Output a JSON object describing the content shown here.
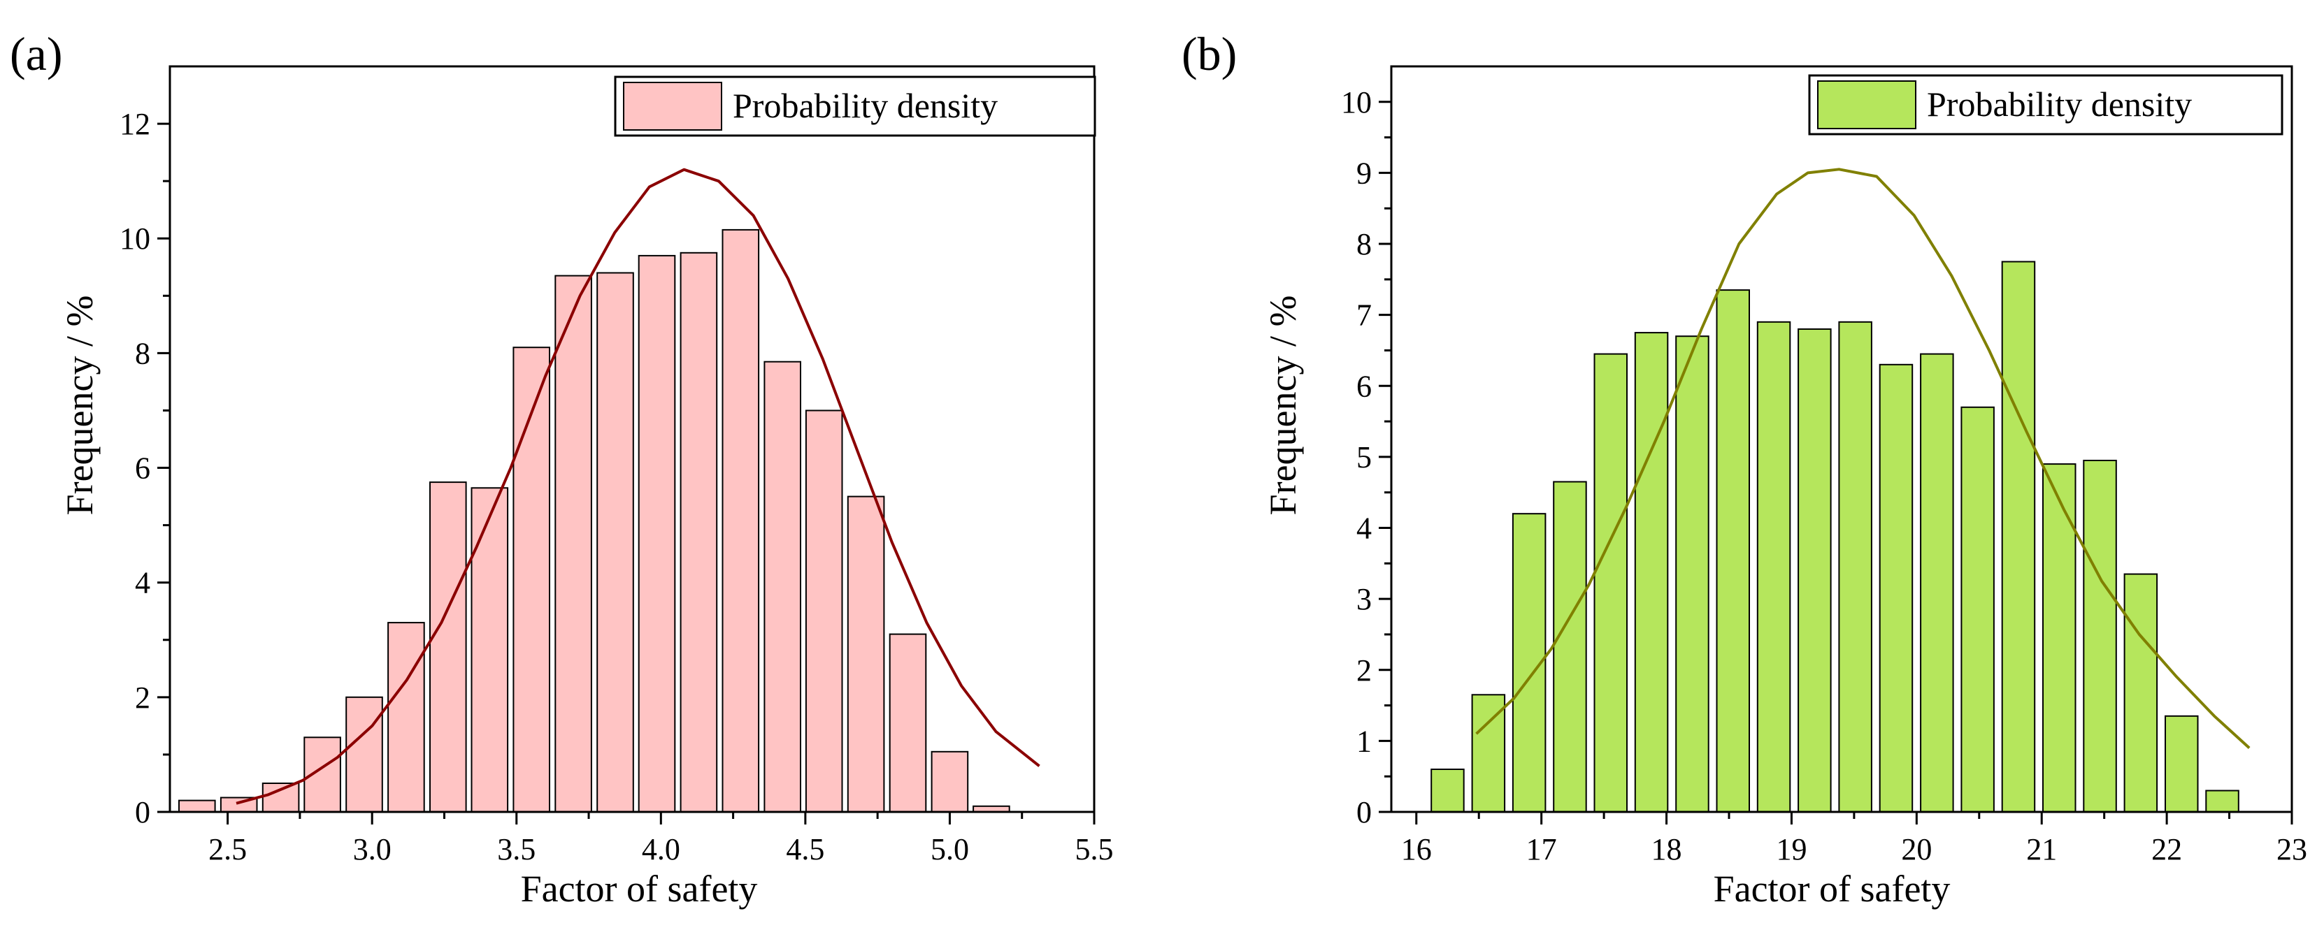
{
  "panels": {
    "a": {
      "label": "(a)"
    },
    "b": {
      "label": "(b)"
    }
  },
  "chart_data": [
    {
      "id": "a",
      "type": "bar",
      "xlabel": "Factor of safety",
      "ylabel": "Frequency / %",
      "xlim": [
        2.3,
        5.5
      ],
      "ylim": [
        0,
        13
      ],
      "xticks": [
        2.5,
        3.0,
        3.5,
        4.0,
        4.5,
        5.0,
        5.5
      ],
      "xtick_labels": [
        "2.5",
        "3.0",
        "3.5",
        "4.0",
        "4.5",
        "5.0",
        "5.5"
      ],
      "yticks": [
        0,
        2,
        4,
        6,
        8,
        10,
        12
      ],
      "ytick_labels": [
        "0",
        "2",
        "4",
        "6",
        "8",
        "10",
        "12"
      ],
      "bar_width": 0.125,
      "bar_color": "#ffc4c4",
      "line_color": "#8b0000",
      "legend": {
        "label": "Probability density",
        "position": "top-right"
      },
      "series": [
        {
          "name": "Probability density",
          "type": "bar",
          "x": [
            2.394,
            2.539,
            2.684,
            2.828,
            2.973,
            3.118,
            3.263,
            3.407,
            3.552,
            3.697,
            3.842,
            3.986,
            4.131,
            4.276,
            4.421,
            4.565,
            4.71,
            4.855,
            5.0,
            5.144,
            5.289
          ],
          "values": [
            0.2,
            0.25,
            0.5,
            1.3,
            2.0,
            3.3,
            5.75,
            5.65,
            8.1,
            9.35,
            9.4,
            9.7,
            9.75,
            10.15,
            7.85,
            7.0,
            5.5,
            3.1,
            1.05,
            0.1,
            0.0
          ]
        },
        {
          "type": "line",
          "x": [
            2.53,
            2.64,
            2.76,
            2.88,
            3.0,
            3.12,
            3.24,
            3.36,
            3.48,
            3.6,
            3.72,
            3.84,
            3.96,
            4.08,
            4.2,
            4.32,
            4.44,
            4.56,
            4.68,
            4.8,
            4.92,
            5.04,
            5.16,
            5.31
          ],
          "values": [
            0.15,
            0.3,
            0.55,
            0.95,
            1.5,
            2.3,
            3.3,
            4.6,
            6.0,
            7.6,
            9.0,
            10.1,
            10.9,
            11.2,
            11.0,
            10.4,
            9.3,
            7.9,
            6.3,
            4.7,
            3.3,
            2.2,
            1.4,
            0.8
          ]
        }
      ]
    },
    {
      "id": "b",
      "type": "bar",
      "xlabel": "Factor of safety",
      "ylabel": "Frequency / %",
      "xlim": [
        15.8,
        23
      ],
      "ylim": [
        0,
        10.5
      ],
      "xticks": [
        16,
        17,
        18,
        19,
        20,
        21,
        22,
        23
      ],
      "xtick_labels": [
        "16",
        "17",
        "18",
        "19",
        "20",
        "21",
        "22",
        "23"
      ],
      "yticks": [
        0,
        1,
        2,
        3,
        4,
        5,
        6,
        7,
        8,
        9,
        10
      ],
      "ytick_labels": [
        "0",
        "1",
        "2",
        "3",
        "4",
        "5",
        "6",
        "7",
        "8",
        "9",
        "10"
      ],
      "bar_width": 0.26,
      "bar_color": "#b5e65c",
      "line_color": "#808000",
      "legend": {
        "label": "Probability density",
        "position": "top-right"
      },
      "series": [
        {
          "name": "Probability density",
          "type": "bar",
          "x": [
            16.25,
            16.576,
            16.902,
            17.228,
            17.554,
            17.88,
            18.206,
            18.532,
            18.858,
            19.184,
            19.51,
            19.836,
            20.162,
            20.488,
            20.814,
            21.14,
            21.466,
            21.792,
            22.118,
            22.444
          ],
          "values": [
            0.6,
            1.65,
            4.2,
            4.65,
            6.45,
            6.75,
            6.7,
            7.35,
            6.9,
            6.8,
            6.9,
            6.3,
            6.45,
            5.7,
            7.75,
            4.9,
            4.95,
            3.35,
            1.35,
            0.3
          ]
        },
        {
          "type": "line",
          "x": [
            16.48,
            16.78,
            17.08,
            17.38,
            17.68,
            17.98,
            18.28,
            18.58,
            18.88,
            19.13,
            19.38,
            19.68,
            19.98,
            20.28,
            20.58,
            20.88,
            21.18,
            21.48,
            21.78,
            22.08,
            22.38,
            22.66
          ],
          "values": [
            1.1,
            1.6,
            2.3,
            3.2,
            4.3,
            5.5,
            6.8,
            8.0,
            8.7,
            9.0,
            9.05,
            8.95,
            8.4,
            7.55,
            6.5,
            5.35,
            4.25,
            3.25,
            2.5,
            1.9,
            1.35,
            0.9
          ]
        }
      ]
    }
  ]
}
